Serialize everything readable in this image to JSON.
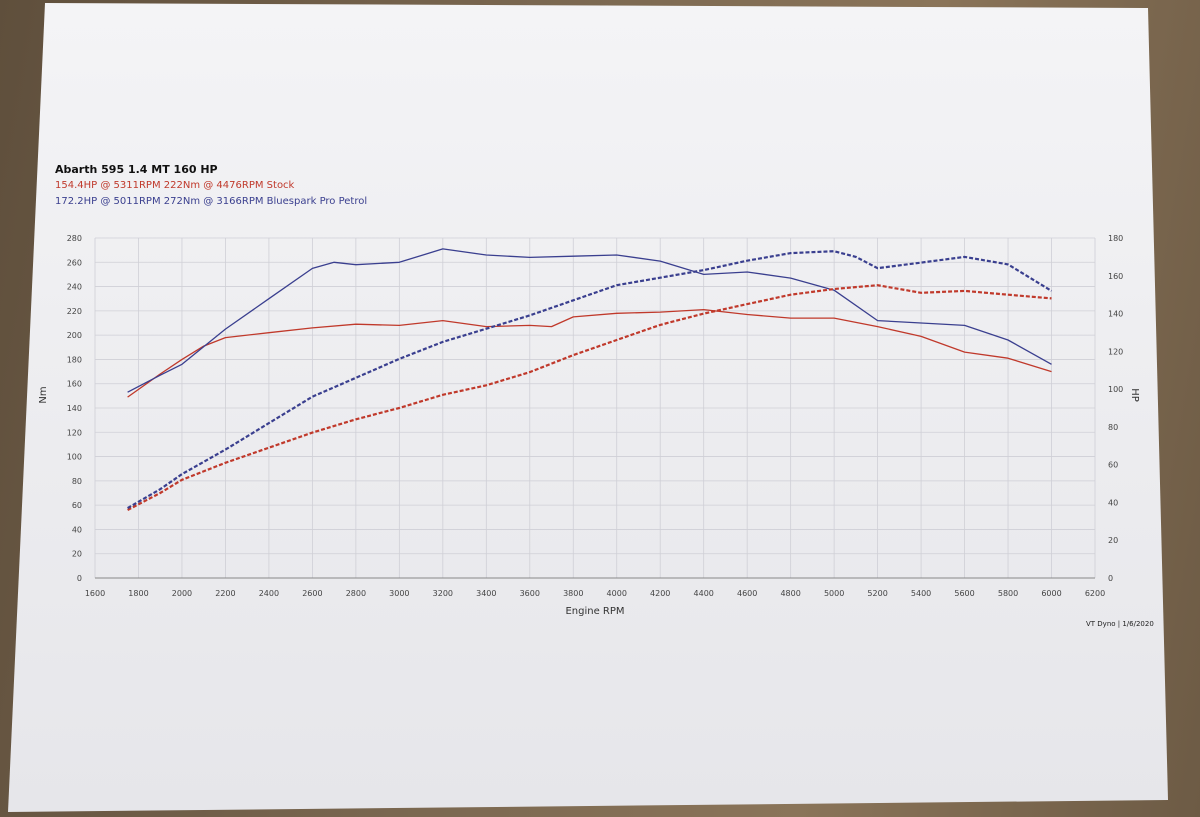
{
  "header": {
    "title": "Abarth 595 1.4 MT 160 HP",
    "stock_line": "154.4HP @ 5311RPM 222Nm @ 4476RPM Stock",
    "tuned_line": "172.2HP @ 5011RPM 272Nm @ 3166RPM Bluespark Pro Petrol"
  },
  "footer": "VT Dyno | 1/6/2020",
  "colors": {
    "stock": "#c0392b",
    "tuned": "#3a3f8f",
    "grid": "#cfcfd6"
  },
  "chart_data": {
    "type": "line",
    "xlabel": "Engine RPM",
    "ylabel_left": "Nm",
    "ylabel_right": "HP",
    "x_ticks": [
      1600,
      1800,
      2000,
      2200,
      2400,
      2600,
      2800,
      3000,
      3200,
      3400,
      3600,
      3800,
      4000,
      4200,
      4400,
      4600,
      4800,
      5000,
      5200,
      5400,
      5600,
      5800,
      6000,
      6200
    ],
    "y_left_ticks": [
      0,
      20,
      40,
      60,
      80,
      100,
      120,
      140,
      160,
      180,
      200,
      220,
      240,
      260,
      280
    ],
    "y_right_ticks": [
      0,
      20,
      40,
      60,
      80,
      100,
      120,
      140,
      160,
      180
    ],
    "xlim": [
      1600,
      6200
    ],
    "ylim_left": [
      0,
      280
    ],
    "ylim_right": [
      0,
      180
    ],
    "grid": true,
    "series": [
      {
        "name": "Stock",
        "metric": "torque",
        "axis": "left",
        "style": "solid",
        "color": "stock",
        "x": [
          1750,
          1900,
          2000,
          2100,
          2200,
          2400,
          2600,
          2800,
          3000,
          3200,
          3400,
          3600,
          3700,
          3800,
          4000,
          4200,
          4400,
          4600,
          4800,
          5000,
          5200,
          5400,
          5600,
          5800,
          6000
        ],
        "y": [
          149,
          168,
          180,
          191,
          198,
          202,
          206,
          209,
          208,
          212,
          207,
          208,
          207,
          215,
          218,
          219,
          221,
          217,
          214,
          214,
          207,
          199,
          186,
          181,
          170
        ]
      },
      {
        "name": "Bluespark Pro Petrol",
        "metric": "torque",
        "axis": "left",
        "style": "solid",
        "color": "tuned",
        "x": [
          1750,
          1900,
          2000,
          2200,
          2400,
          2600,
          2700,
          2800,
          3000,
          3200,
          3400,
          3600,
          3800,
          4000,
          4200,
          4400,
          4600,
          4800,
          5000,
          5200,
          5400,
          5600,
          5800,
          6000
        ],
        "y": [
          153,
          167,
          176,
          205,
          230,
          255,
          260,
          258,
          260,
          271,
          266,
          264,
          265,
          266,
          261,
          250,
          252,
          247,
          237,
          212,
          210,
          208,
          196,
          176
        ]
      },
      {
        "name": "Stock",
        "metric": "power",
        "axis": "right",
        "style": "dashed",
        "color": "stock",
        "x": [
          1750,
          1900,
          2000,
          2200,
          2400,
          2600,
          2800,
          3000,
          3200,
          3400,
          3600,
          3800,
          4000,
          4200,
          4400,
          4600,
          4800,
          5000,
          5200,
          5400,
          5600,
          5800,
          6000
        ],
        "y": [
          36,
          45,
          52,
          61,
          69,
          77,
          84,
          90,
          97,
          102,
          109,
          118,
          126,
          134,
          140,
          145,
          150,
          153,
          155,
          151,
          152,
          150,
          148
        ]
      },
      {
        "name": "Bluespark Pro Petrol",
        "metric": "power",
        "axis": "right",
        "style": "dashed",
        "color": "tuned",
        "x": [
          1750,
          1900,
          2000,
          2200,
          2400,
          2600,
          2800,
          3000,
          3200,
          3400,
          3600,
          3800,
          4000,
          4200,
          4400,
          4600,
          4800,
          5000,
          5100,
          5200,
          5400,
          5600,
          5800,
          6000
        ],
        "y": [
          37,
          47,
          55,
          68,
          82,
          96,
          106,
          116,
          125,
          132,
          139,
          147,
          155,
          159,
          163,
          168,
          172,
          173,
          170,
          164,
          167,
          170,
          166,
          152
        ]
      }
    ]
  }
}
